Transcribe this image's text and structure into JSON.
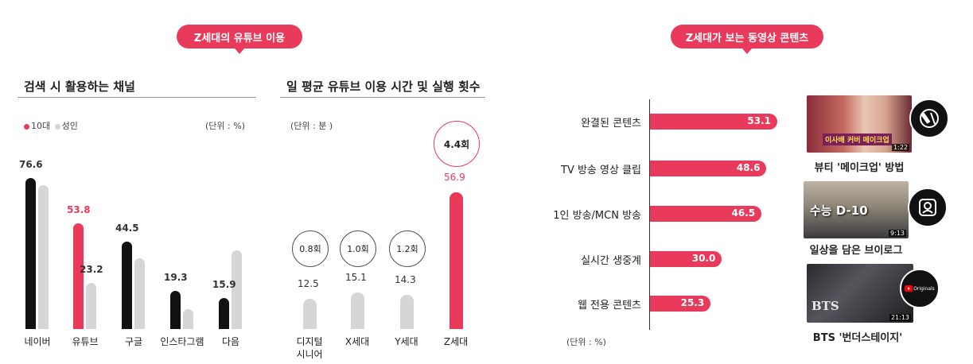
{
  "left": {
    "pill_title": "Z세대의 유튜브 이용",
    "chart1": {
      "title": "검색 시 활용하는 채널",
      "unit": "(단위 : %)",
      "legend": [
        {
          "label": "10대",
          "color": "#ea3a5b"
        },
        {
          "label": "성인",
          "color": "#d6d6d6"
        }
      ]
    },
    "chart2": {
      "title": "일 평균 유튜브 이용 시간 및 실행 횟수",
      "unit": "(단위 : 분 )"
    }
  },
  "right": {
    "pill_title": "Z세대가 보는 동영상 콘텐츠",
    "unit": "(단위 : %)",
    "thumbnails": [
      {
        "label": "뷰티 '메이크업' 방법",
        "overlay": "이사배 커버 메이크업",
        "time": "1:22",
        "icon": "makeup-icon"
      },
      {
        "label": "일상을 담은 브이로그",
        "overlay": "수능 D-10",
        "time": "9:13",
        "icon": "vlog-camera-icon"
      },
      {
        "label": "BTS '번더스테이지'",
        "overlay": "BTS",
        "time": "21:13",
        "badge": "Originals",
        "icon": "youtube-originals-icon"
      }
    ]
  },
  "colors": {
    "accent": "#ea3a5b",
    "black": "#111111",
    "grey": "#d6d6d6"
  },
  "chart_data": [
    {
      "type": "bar",
      "title": "검색 시 활용하는 채널",
      "categories": [
        "네이버",
        "유튜브",
        "구글",
        "인스타그램",
        "다음"
      ],
      "series": [
        {
          "name": "10대",
          "values": [
            76.6,
            53.8,
            44.5,
            19.3,
            15.9
          ]
        },
        {
          "name": "성인",
          "values": [
            73.0,
            23.2,
            36.0,
            10.0,
            40.0
          ]
        }
      ],
      "value_labels": [
        "76.6",
        "53.8",
        "23.2",
        "44.5",
        "19.3",
        "15.9"
      ],
      "ylim": [
        0,
        80
      ]
    },
    {
      "type": "bar",
      "title": "일 평균 유튜브 이용 시간 및 실행 횟수",
      "categories": [
        "디지털\n시니어",
        "X세대",
        "Y세대",
        "Z세대"
      ],
      "values": [
        12.5,
        15.1,
        14.3,
        56.9
      ],
      "value_labels": [
        "12.5",
        "15.1",
        "14.3",
        "56.9"
      ],
      "counts": [
        "0.8회",
        "1.0회",
        "1.2회",
        "4.4회"
      ],
      "ylim": [
        0,
        60
      ]
    },
    {
      "type": "bar",
      "orientation": "horizontal",
      "categories": [
        "완결된 콘텐츠",
        "TV 방송 영상 클립",
        "1인 방송/MCN 방송",
        "실시간 생중계",
        "웹 전용 콘텐츠"
      ],
      "values": [
        53.1,
        48.6,
        46.5,
        30.0,
        25.3
      ],
      "value_labels": [
        "53.1",
        "48.6",
        "46.5",
        "30.0",
        "25.3"
      ],
      "xlim": [
        0,
        60
      ]
    }
  ]
}
